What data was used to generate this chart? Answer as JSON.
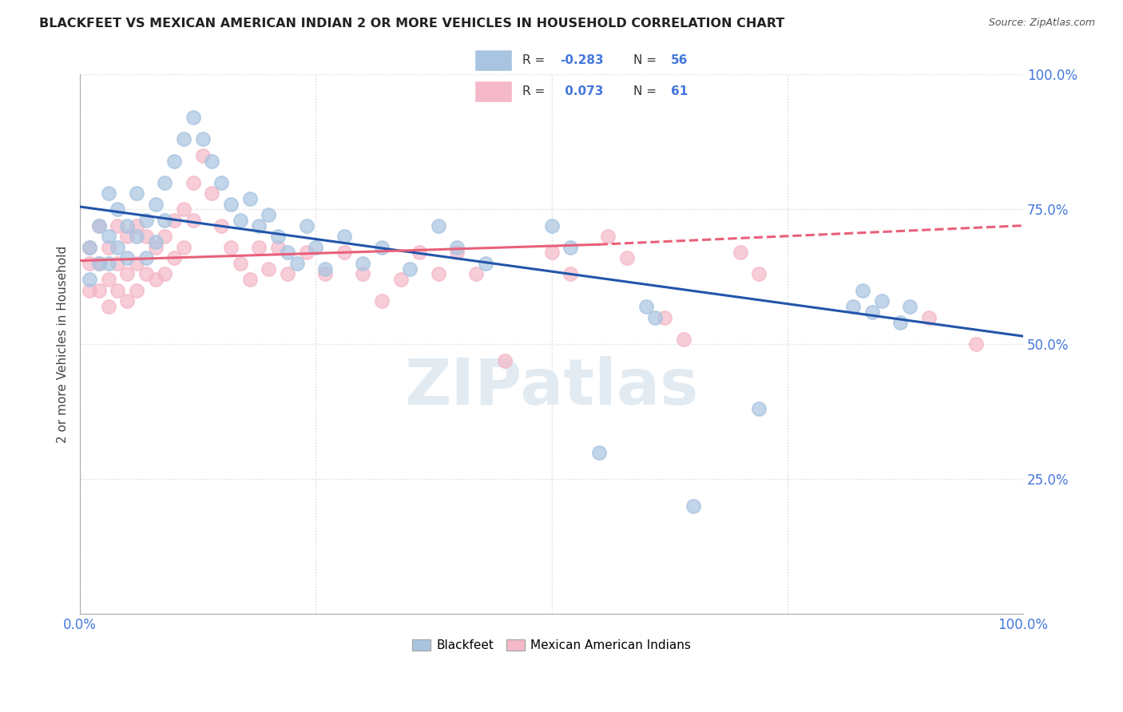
{
  "title": "BLACKFEET VS MEXICAN AMERICAN INDIAN 2 OR MORE VEHICLES IN HOUSEHOLD CORRELATION CHART",
  "source": "Source: ZipAtlas.com",
  "ylabel": "2 or more Vehicles in Household",
  "xlim": [
    0.0,
    1.0
  ],
  "ylim": [
    0.0,
    1.0
  ],
  "ytick_positions": [
    0.25,
    0.5,
    0.75,
    1.0
  ],
  "ytick_labels": [
    "25.0%",
    "50.0%",
    "75.0%",
    "100.0%"
  ],
  "xtick_positions": [
    0.0,
    0.25,
    0.5,
    0.75,
    1.0
  ],
  "xticklabels": [
    "0.0%",
    "",
    "",
    "",
    "100.0%"
  ],
  "watermark": "ZIPatlas",
  "legend_labels": [
    "Blackfeet",
    "Mexican American Indians"
  ],
  "blue_R": -0.283,
  "blue_N": 56,
  "pink_R": 0.073,
  "pink_N": 61,
  "blue_color": "#a8c4e0",
  "pink_color": "#f4b8c8",
  "blue_line_color": "#2255aa",
  "pink_line_color": "#e8607a",
  "tick_color": "#4477dd",
  "blue_scatter": [
    [
      0.01,
      0.68
    ],
    [
      0.01,
      0.62
    ],
    [
      0.02,
      0.72
    ],
    [
      0.02,
      0.65
    ],
    [
      0.03,
      0.78
    ],
    [
      0.03,
      0.7
    ],
    [
      0.03,
      0.65
    ],
    [
      0.04,
      0.75
    ],
    [
      0.04,
      0.68
    ],
    [
      0.05,
      0.72
    ],
    [
      0.05,
      0.66
    ],
    [
      0.06,
      0.78
    ],
    [
      0.06,
      0.7
    ],
    [
      0.07,
      0.73
    ],
    [
      0.07,
      0.66
    ],
    [
      0.08,
      0.76
    ],
    [
      0.08,
      0.69
    ],
    [
      0.09,
      0.8
    ],
    [
      0.09,
      0.73
    ],
    [
      0.1,
      0.84
    ],
    [
      0.11,
      0.88
    ],
    [
      0.12,
      0.92
    ],
    [
      0.13,
      0.88
    ],
    [
      0.14,
      0.84
    ],
    [
      0.15,
      0.8
    ],
    [
      0.16,
      0.76
    ],
    [
      0.17,
      0.73
    ],
    [
      0.18,
      0.77
    ],
    [
      0.19,
      0.72
    ],
    [
      0.2,
      0.74
    ],
    [
      0.21,
      0.7
    ],
    [
      0.22,
      0.67
    ],
    [
      0.23,
      0.65
    ],
    [
      0.24,
      0.72
    ],
    [
      0.25,
      0.68
    ],
    [
      0.26,
      0.64
    ],
    [
      0.28,
      0.7
    ],
    [
      0.3,
      0.65
    ],
    [
      0.32,
      0.68
    ],
    [
      0.35,
      0.64
    ],
    [
      0.38,
      0.72
    ],
    [
      0.4,
      0.68
    ],
    [
      0.43,
      0.65
    ],
    [
      0.5,
      0.72
    ],
    [
      0.52,
      0.68
    ],
    [
      0.55,
      0.3
    ],
    [
      0.65,
      0.2
    ],
    [
      0.82,
      0.57
    ],
    [
      0.83,
      0.6
    ],
    [
      0.84,
      0.56
    ],
    [
      0.85,
      0.58
    ],
    [
      0.87,
      0.54
    ],
    [
      0.88,
      0.57
    ],
    [
      0.72,
      0.38
    ],
    [
      0.6,
      0.57
    ],
    [
      0.61,
      0.55
    ]
  ],
  "pink_scatter": [
    [
      0.01,
      0.68
    ],
    [
      0.01,
      0.65
    ],
    [
      0.01,
      0.6
    ],
    [
      0.02,
      0.72
    ],
    [
      0.02,
      0.65
    ],
    [
      0.02,
      0.6
    ],
    [
      0.03,
      0.68
    ],
    [
      0.03,
      0.62
    ],
    [
      0.03,
      0.57
    ],
    [
      0.04,
      0.72
    ],
    [
      0.04,
      0.65
    ],
    [
      0.04,
      0.6
    ],
    [
      0.05,
      0.7
    ],
    [
      0.05,
      0.63
    ],
    [
      0.05,
      0.58
    ],
    [
      0.06,
      0.72
    ],
    [
      0.06,
      0.65
    ],
    [
      0.06,
      0.6
    ],
    [
      0.07,
      0.7
    ],
    [
      0.07,
      0.63
    ],
    [
      0.08,
      0.68
    ],
    [
      0.08,
      0.62
    ],
    [
      0.09,
      0.7
    ],
    [
      0.09,
      0.63
    ],
    [
      0.1,
      0.73
    ],
    [
      0.1,
      0.66
    ],
    [
      0.11,
      0.75
    ],
    [
      0.11,
      0.68
    ],
    [
      0.12,
      0.8
    ],
    [
      0.12,
      0.73
    ],
    [
      0.13,
      0.85
    ],
    [
      0.14,
      0.78
    ],
    [
      0.15,
      0.72
    ],
    [
      0.16,
      0.68
    ],
    [
      0.17,
      0.65
    ],
    [
      0.18,
      0.62
    ],
    [
      0.19,
      0.68
    ],
    [
      0.2,
      0.64
    ],
    [
      0.21,
      0.68
    ],
    [
      0.22,
      0.63
    ],
    [
      0.24,
      0.67
    ],
    [
      0.26,
      0.63
    ],
    [
      0.28,
      0.67
    ],
    [
      0.3,
      0.63
    ],
    [
      0.32,
      0.58
    ],
    [
      0.34,
      0.62
    ],
    [
      0.36,
      0.67
    ],
    [
      0.38,
      0.63
    ],
    [
      0.4,
      0.67
    ],
    [
      0.42,
      0.63
    ],
    [
      0.45,
      0.47
    ],
    [
      0.5,
      0.67
    ],
    [
      0.52,
      0.63
    ],
    [
      0.56,
      0.7
    ],
    [
      0.58,
      0.66
    ],
    [
      0.62,
      0.55
    ],
    [
      0.64,
      0.51
    ],
    [
      0.7,
      0.67
    ],
    [
      0.72,
      0.63
    ],
    [
      0.9,
      0.55
    ],
    [
      0.95,
      0.5
    ]
  ]
}
